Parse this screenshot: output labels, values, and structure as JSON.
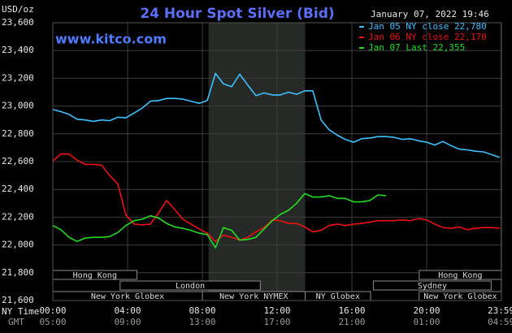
{
  "chart_data": {
    "type": "line",
    "title": "24 Hour Spot Silver (Bid)",
    "watermark": "www.kitco.com",
    "timestamp": "January 07, 2022 19:46",
    "y_unit": "USD/oz",
    "x_axis_labels": [
      "NY Time",
      "GMT"
    ],
    "xlim": [
      0,
      24
    ],
    "ylim": [
      21600,
      23600
    ],
    "grid": true,
    "legend": "top-right",
    "highlight": [
      8.33,
      13.5
    ],
    "yticks": [
      {
        "value": 21600,
        "label": "21,600"
      },
      {
        "value": 21800,
        "label": "21,800"
      },
      {
        "value": 22000,
        "label": "22,000"
      },
      {
        "value": 22200,
        "label": "22,200"
      },
      {
        "value": 22400,
        "label": "22,400"
      },
      {
        "value": 22600,
        "label": "22,600"
      },
      {
        "value": 22800,
        "label": "22,800"
      },
      {
        "value": 23000,
        "label": "23,000"
      },
      {
        "value": 23200,
        "label": "23,200"
      },
      {
        "value": 23400,
        "label": "23,400"
      },
      {
        "value": 23600,
        "label": "23,600"
      }
    ],
    "xticks": [
      {
        "value": 0,
        "label": "00:00"
      },
      {
        "value": 4,
        "label": "04:00"
      },
      {
        "value": 8,
        "label": "08:00"
      },
      {
        "value": 12,
        "label": "12:00"
      },
      {
        "value": 16,
        "label": "16:00"
      },
      {
        "value": 20,
        "label": "20:00"
      },
      {
        "value": 23.98,
        "label": "23:59"
      }
    ],
    "gmt_ticks": [
      {
        "value": 0,
        "label": "05:00"
      },
      {
        "value": 4,
        "label": "09:00"
      },
      {
        "value": 8,
        "label": "13:00"
      },
      {
        "value": 12,
        "label": "17:00"
      },
      {
        "value": 16,
        "label": "21:00"
      },
      {
        "value": 20,
        "label": "01:00"
      },
      {
        "value": 23.98,
        "label": "04:59"
      }
    ],
    "session_rows": [
      [
        {
          "label": "Hong Kong",
          "start": 0,
          "end": 4.5
        },
        {
          "label": "Hong Kong",
          "start": 19.6,
          "end": 24
        }
      ],
      [
        {
          "label": "London",
          "start": 3.6,
          "end": 11.1
        },
        {
          "label": "Sydney",
          "start": 17.15,
          "end": 23.45
        }
      ],
      [
        {
          "label": "New York Globex",
          "start": 0,
          "end": 8
        },
        {
          "label": "New York NYMEX",
          "start": 8,
          "end": 13.5
        },
        {
          "label": "NY Globex",
          "start": 13.5,
          "end": 17
        },
        {
          "label": "New York Globex",
          "start": 19.6,
          "end": 24
        }
      ]
    ],
    "x": [
      0,
      0.43,
      0.87,
      1.3,
      1.74,
      2.17,
      2.61,
      3.04,
      3.48,
      3.91,
      4.35,
      4.78,
      5.22,
      5.65,
      6.09,
      6.52,
      6.96,
      7.39,
      7.83,
      8.26,
      8.7,
      9.13,
      9.57,
      10,
      10.43,
      10.87,
      11.3,
      11.74,
      12.17,
      12.61,
      13.04,
      13.48,
      13.91,
      14.35,
      14.78,
      15.22,
      15.65,
      16.09,
      16.52,
      16.96,
      17.39,
      17.83,
      18.26,
      18.7,
      19.13,
      19.57,
      20,
      20.43,
      20.87,
      21.3,
      21.74,
      22.17,
      22.61,
      23.04,
      23.48,
      23.91
    ],
    "series": [
      {
        "name": "Jan 05 NY close 22,780",
        "color": "#3fc0ff",
        "values": [
          22975,
          22960,
          22940,
          22905,
          22900,
          22890,
          22900,
          22895,
          22920,
          22915,
          22950,
          22985,
          23035,
          23040,
          23055,
          23055,
          23050,
          23035,
          23020,
          23040,
          23235,
          23160,
          23140,
          23230,
          23150,
          23075,
          23095,
          23080,
          23080,
          23100,
          23085,
          23110,
          23110,
          22900,
          22830,
          22790,
          22760,
          22740,
          22765,
          22770,
          22780,
          22780,
          22775,
          22760,
          22765,
          22750,
          22740,
          22720,
          22745,
          22715,
          22690,
          22685,
          22675,
          22670,
          22650,
          22630
        ]
      },
      {
        "name": "Jan 06 NY close 22,170",
        "color": "#ee1111",
        "values": [
          22605,
          22655,
          22655,
          22610,
          22580,
          22580,
          22575,
          22500,
          22440,
          22215,
          22150,
          22145,
          22150,
          22230,
          22320,
          22255,
          22185,
          22150,
          22115,
          22085,
          22025,
          22070,
          22055,
          22035,
          22055,
          22095,
          22125,
          22180,
          22175,
          22155,
          22155,
          22130,
          22095,
          22105,
          22140,
          22150,
          22140,
          22150,
          22155,
          22165,
          22175,
          22175,
          22175,
          22180,
          22175,
          22190,
          22180,
          22150,
          22125,
          22120,
          22130,
          22110,
          22120,
          22125,
          22125,
          22120
        ]
      },
      {
        "name": "Jan 07 Last 22,355",
        "color": "#22dd22",
        "values": [
          22140,
          22110,
          22055,
          22025,
          22050,
          22055,
          22055,
          22060,
          22090,
          22140,
          22175,
          22185,
          22210,
          22195,
          22155,
          22130,
          22120,
          22105,
          22085,
          22075,
          21980,
          22125,
          22105,
          22035,
          22040,
          22055,
          22115,
          22175,
          22220,
          22250,
          22300,
          22370,
          22345,
          22345,
          22355,
          22335,
          22335,
          22310,
          22310,
          22320,
          22360,
          22355,
          null,
          null,
          null,
          null,
          null,
          null,
          null,
          null,
          null,
          null,
          null,
          null,
          null,
          null
        ]
      }
    ]
  }
}
